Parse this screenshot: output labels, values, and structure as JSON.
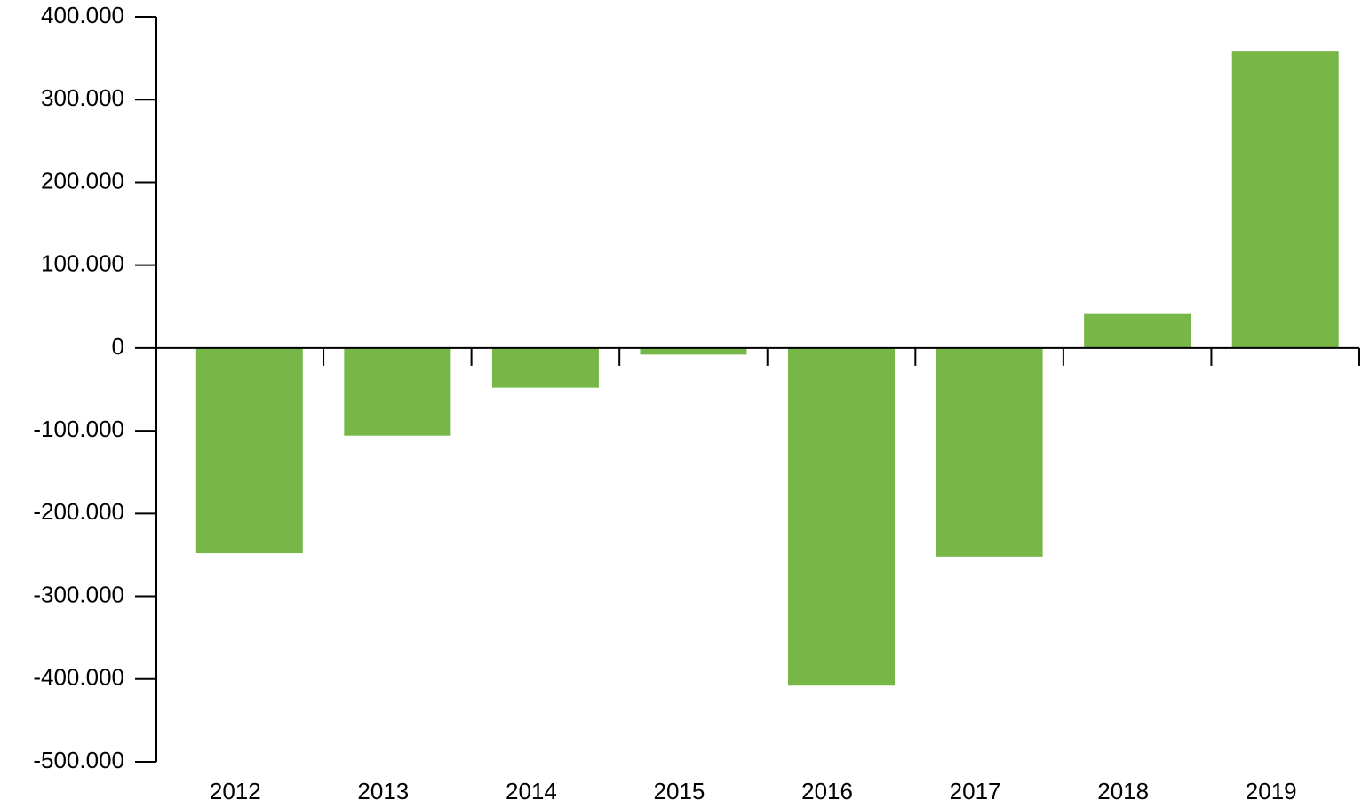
{
  "chart_data": {
    "type": "bar",
    "categories": [
      "2012",
      "2013",
      "2014",
      "2015",
      "2016",
      "2017",
      "2018",
      "2019"
    ],
    "values": [
      -248000,
      -106000,
      -48000,
      -8000,
      -408000,
      -252000,
      41000,
      358000
    ],
    "color": "#76b748",
    "ylim": [
      -500000,
      400000
    ],
    "yticks": [
      {
        "value": -500000,
        "label": "-500.000"
      },
      {
        "value": -400000,
        "label": "-400.000"
      },
      {
        "value": -300000,
        "label": "-300.000"
      },
      {
        "value": -200000,
        "label": "-200.000"
      },
      {
        "value": -100000,
        "label": "-100.000"
      },
      0,
      {
        "value": 100000,
        "label": "100.000"
      },
      {
        "value": 200000,
        "label": "200.000"
      },
      {
        "value": 300000,
        "label": "300.000"
      },
      {
        "value": 400000,
        "label": "400.000"
      }
    ],
    "grid": false
  }
}
